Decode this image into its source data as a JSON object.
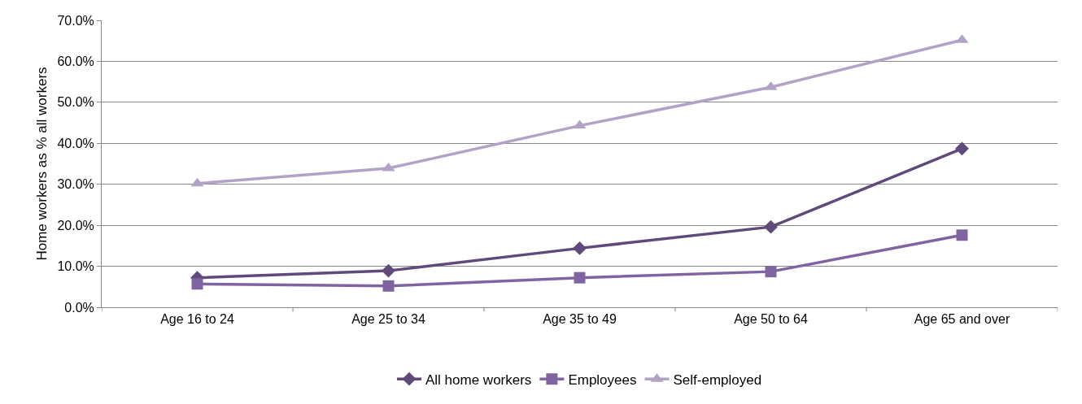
{
  "chart_data": {
    "type": "line",
    "ylabel": "Home workers as % all workers",
    "categories": [
      "Age 16 to 24",
      "Age 25 to 34",
      "Age 35 to 49",
      "Age 50 to 64",
      "Age 65 and over"
    ],
    "series": [
      {
        "name": "All home workers",
        "color": "#604a7b",
        "marker": "diamond",
        "values": [
          7.2,
          8.9,
          14.4,
          19.6,
          38.7
        ]
      },
      {
        "name": "Employees",
        "color": "#8064a2",
        "marker": "square",
        "values": [
          5.7,
          5.2,
          7.2,
          8.7,
          17.6
        ]
      },
      {
        "name": "Self-employed",
        "color": "#b3a2c7",
        "marker": "triangle",
        "values": [
          30.2,
          33.9,
          44.3,
          53.7,
          65.2
        ]
      }
    ],
    "ylim": [
      0,
      70
    ],
    "yticks": [
      {
        "value": 0,
        "label": "0.0%"
      },
      {
        "value": 10,
        "label": "10.0%"
      },
      {
        "value": 20,
        "label": "20.0%"
      },
      {
        "value": 30,
        "label": "30.0%"
      },
      {
        "value": 40,
        "label": "40.0%"
      },
      {
        "value": 50,
        "label": "50.0%"
      },
      {
        "value": 60,
        "label": "60.0%"
      },
      {
        "value": 70,
        "label": "70.0%"
      }
    ],
    "grid": "y",
    "legend": "bottom",
    "line_style": "solid"
  }
}
